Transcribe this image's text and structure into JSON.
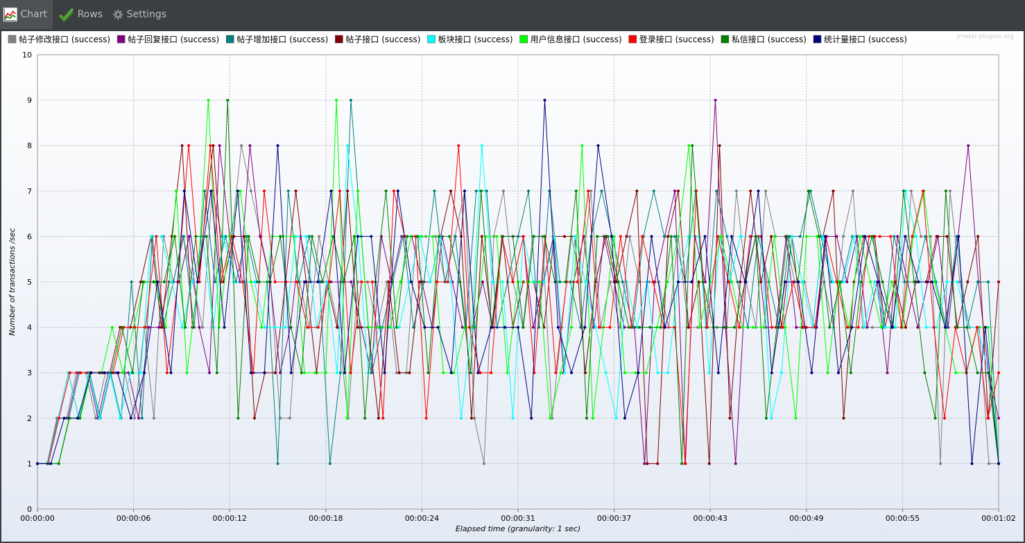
{
  "toolbar": {
    "tabs": [
      {
        "label": "Chart",
        "icon": "chart-icon",
        "active": true
      },
      {
        "label": "Rows",
        "icon": "checkmarks-icon",
        "active": false
      },
      {
        "label": "Settings",
        "icon": "gear-icon",
        "active": false
      }
    ]
  },
  "watermark": "jmeter-plugins.org",
  "chart_data": {
    "type": "line",
    "xlabel": "Elapsed time (granularity: 1 sec)",
    "ylabel": "Number of transactions /sec",
    "ylim": [
      0,
      10
    ],
    "xlim": [
      0,
      62
    ],
    "x_ticks": [
      "00:00:00",
      "00:00:06",
      "00:00:12",
      "00:00:18",
      "00:00:24",
      "00:00:31",
      "00:00:37",
      "00:00:43",
      "00:00:49",
      "00:00:55",
      "00:01:02"
    ],
    "grid": true,
    "legend_position": "top",
    "series": [
      {
        "name": "帖子修改接口 (success)",
        "color": "#808080",
        "values": [
          1,
          1,
          2,
          2,
          3,
          3,
          2,
          3,
          3,
          3,
          2,
          4,
          2,
          6,
          5,
          6,
          5,
          4,
          7,
          6,
          6,
          8,
          7,
          6,
          5,
          2,
          2,
          5,
          4,
          6,
          5,
          4,
          2,
          5,
          5,
          4,
          5,
          3,
          3,
          6,
          6,
          6,
          5,
          6,
          7,
          2,
          1,
          6,
          7,
          5,
          4,
          6,
          6,
          2,
          4,
          6,
          5,
          7,
          4,
          5,
          4,
          6,
          5,
          5,
          5,
          4,
          6,
          4,
          4,
          4,
          4,
          4,
          7,
          5,
          4,
          7,
          6,
          6,
          5,
          5,
          4,
          5,
          4,
          6,
          7,
          4,
          4,
          4,
          4,
          4,
          7,
          6,
          6,
          1,
          7,
          5,
          4,
          4,
          1,
          1
        ]
      },
      {
        "name": "帖子回复接口 (success)",
        "color": "#800080",
        "values": [
          1,
          1,
          2,
          2,
          3,
          3,
          2,
          3,
          3,
          3,
          2,
          4,
          4,
          5,
          5,
          6,
          4,
          3,
          8,
          6,
          5,
          8,
          6,
          5,
          3,
          4,
          6,
          5,
          5,
          5,
          5,
          5,
          4,
          3,
          6,
          5,
          6,
          6,
          5,
          4,
          6,
          5,
          4,
          4,
          5,
          4,
          6,
          6,
          6,
          4,
          5,
          6,
          3,
          5,
          6,
          4,
          6,
          5,
          4,
          4,
          1,
          5,
          6,
          7,
          1,
          6,
          5,
          9,
          4,
          1,
          5,
          6,
          4,
          4,
          6,
          4,
          4,
          4,
          6,
          6,
          5,
          6,
          4,
          5,
          3,
          6,
          5,
          4,
          5,
          6,
          4,
          6,
          8,
          5,
          3,
          2
        ]
      },
      {
        "name": "帖子增加接口 (success)",
        "color": "#008080",
        "values": [
          1,
          1,
          2,
          2,
          3,
          3,
          2,
          3,
          2,
          5,
          2,
          6,
          4,
          5,
          6,
          4,
          7,
          5,
          6,
          5,
          6,
          5,
          5,
          1,
          7,
          5,
          6,
          5,
          1,
          3,
          9,
          6,
          3,
          4,
          5,
          6,
          4,
          5,
          7,
          5,
          6,
          4,
          7,
          7,
          4,
          5,
          6,
          7,
          4,
          7,
          5,
          5,
          4,
          6,
          7,
          6,
          5,
          4,
          6,
          7,
          6,
          6,
          5,
          7,
          4,
          7,
          6,
          5,
          4,
          6,
          5,
          4,
          6,
          6,
          7,
          6,
          5,
          5,
          6,
          6,
          6,
          4,
          6,
          5,
          5,
          6,
          5,
          4,
          6,
          4,
          5,
          5,
          1
        ]
      },
      {
        "name": "帖子接口 (success)",
        "color": "#800000",
        "values": [
          1,
          1,
          2,
          3,
          2,
          3,
          3,
          3,
          4,
          4,
          5,
          6,
          4,
          6,
          8,
          4,
          6,
          8,
          5,
          6,
          6,
          2,
          3,
          3,
          5,
          7,
          5,
          3,
          5,
          4,
          7,
          4,
          4,
          2,
          5,
          3,
          3,
          5,
          5,
          6,
          7,
          6,
          2,
          6,
          4,
          6,
          4,
          5,
          5,
          4,
          6,
          6,
          6,
          3,
          5,
          6,
          5,
          6,
          7,
          1,
          1,
          6,
          7,
          4,
          5,
          1,
          8,
          2,
          5,
          7,
          5,
          6,
          4,
          6,
          4,
          4,
          6,
          7,
          2,
          5,
          6,
          6,
          4,
          5,
          4,
          5,
          5,
          6,
          6,
          4,
          5,
          6,
          2,
          5
        ]
      },
      {
        "name": "板块接口 (success)",
        "color": "#00ffff",
        "values": [
          1,
          1,
          2,
          3,
          2,
          3,
          2,
          3,
          2,
          3,
          3,
          6,
          6,
          5,
          4,
          5,
          6,
          4,
          6,
          5,
          5,
          5,
          4,
          4,
          4,
          6,
          6,
          4,
          5,
          3,
          8,
          6,
          3,
          4,
          4,
          4,
          5,
          6,
          5,
          6,
          5,
          2,
          4,
          8,
          5,
          5,
          2,
          6,
          5,
          5,
          6,
          3,
          6,
          5,
          4,
          3,
          2,
          5,
          4,
          5,
          3,
          3,
          5,
          6,
          6,
          3,
          6,
          5,
          6,
          6,
          6,
          2,
          3,
          6,
          5,
          4,
          6,
          5,
          5,
          6,
          4,
          5,
          4,
          4,
          7,
          6,
          4,
          4,
          5,
          5,
          4,
          4,
          3,
          1
        ]
      },
      {
        "name": "用户信息接口 (success)",
        "color": "#00ff00",
        "values": [
          1,
          1,
          1,
          2,
          2,
          3,
          3,
          4,
          3,
          4,
          5,
          5,
          4,
          7,
          3,
          5,
          9,
          4,
          6,
          7,
          5,
          4,
          6,
          6,
          6,
          3,
          3,
          3,
          9,
          2,
          7,
          4,
          4,
          4,
          5,
          6,
          6,
          6,
          3,
          3,
          4,
          4,
          6,
          6,
          3,
          5,
          5,
          5,
          2,
          3,
          4,
          8,
          2,
          4,
          6,
          3,
          3,
          3,
          4,
          5,
          6,
          8,
          4,
          5,
          6,
          5,
          4,
          4,
          4,
          6,
          4,
          2,
          6,
          6,
          3,
          5,
          4,
          6,
          5,
          4,
          5,
          4,
          6,
          7,
          5,
          4,
          3,
          3,
          4,
          4,
          1
        ]
      },
      {
        "name": "登录接口 (success)",
        "color": "#ff0000",
        "values": [
          1,
          1,
          2,
          3,
          3,
          3,
          3,
          3,
          4,
          4,
          4,
          6,
          3,
          5,
          8,
          5,
          8,
          5,
          6,
          5,
          3,
          7,
          5,
          5,
          5,
          4,
          4,
          5,
          7,
          3,
          5,
          5,
          2,
          7,
          6,
          6,
          2,
          5,
          5,
          8,
          4,
          3,
          3,
          6,
          5,
          6,
          3,
          6,
          3,
          5,
          5,
          7,
          4,
          4,
          6,
          4,
          6,
          5,
          4,
          4,
          1,
          7,
          4,
          6,
          5,
          4,
          6,
          6,
          4,
          4,
          5,
          4,
          4,
          6,
          5,
          4,
          4,
          6,
          6,
          6,
          4,
          6,
          7,
          4,
          2,
          4,
          3,
          4,
          2,
          3
        ]
      },
      {
        "name": "私信接口 (success)",
        "color": "#008000",
        "values": [
          1,
          1,
          1,
          2,
          2,
          3,
          3,
          3,
          4,
          3,
          5,
          5,
          5,
          6,
          4,
          6,
          6,
          3,
          9,
          2,
          6,
          5,
          5,
          6,
          4,
          3,
          6,
          5,
          6,
          5,
          6,
          2,
          5,
          7,
          4,
          6,
          6,
          3,
          6,
          6,
          5,
          3,
          7,
          4,
          6,
          6,
          4,
          6,
          6,
          5,
          5,
          7,
          2,
          6,
          6,
          5,
          4,
          4,
          4,
          4,
          6,
          1,
          8,
          5,
          4,
          4,
          4,
          5,
          6,
          2,
          4,
          6,
          5,
          7,
          6,
          4,
          5,
          3,
          5,
          6,
          5,
          4,
          7,
          5,
          3,
          2,
          7,
          4,
          4,
          3,
          3,
          1
        ]
      },
      {
        "name": "统计量接口 (success)",
        "color": "#000080",
        "values": [
          1,
          1,
          2,
          2,
          3,
          3,
          3,
          2,
          3,
          5,
          3,
          7,
          5,
          7,
          4,
          7,
          3,
          3,
          8,
          3,
          5,
          5,
          7,
          3,
          6,
          6,
          3,
          7,
          5,
          4,
          4,
          3,
          7,
          3,
          4,
          4,
          4,
          2,
          9,
          4,
          3,
          4,
          8,
          6,
          2,
          3,
          6,
          4,
          5,
          5,
          6,
          3,
          6,
          5,
          7,
          3,
          5,
          5,
          3,
          6,
          3,
          4,
          6,
          5,
          4,
          6,
          5,
          5,
          4,
          6,
          1,
          4,
          1
        ]
      }
    ]
  }
}
